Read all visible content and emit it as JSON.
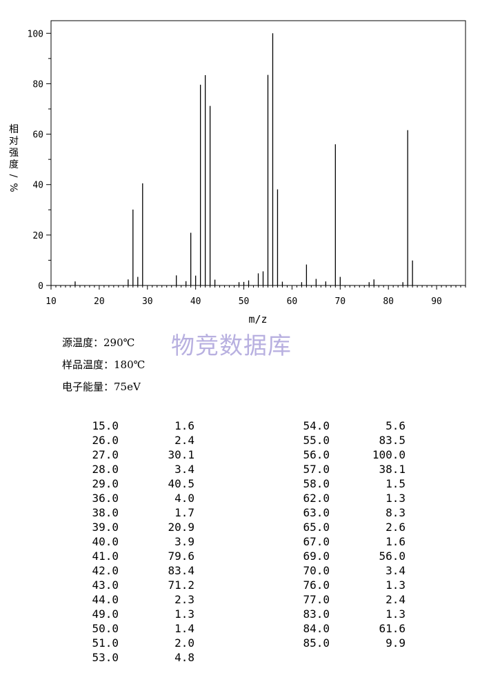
{
  "chart_data": {
    "type": "bar",
    "xlabel": "m/z",
    "ylabel": "相对强度/%",
    "xlim": [
      10,
      96
    ],
    "ylim": [
      0,
      105
    ],
    "xticks": [
      10,
      20,
      30,
      40,
      50,
      60,
      70,
      80,
      90
    ],
    "yticks": [
      0,
      20,
      40,
      60,
      80,
      100
    ],
    "peaks": [
      {
        "mz": 15,
        "ab": 1.6
      },
      {
        "mz": 26,
        "ab": 2.4
      },
      {
        "mz": 27,
        "ab": 30.1
      },
      {
        "mz": 28,
        "ab": 3.4
      },
      {
        "mz": 29,
        "ab": 40.5
      },
      {
        "mz": 36,
        "ab": 4.0
      },
      {
        "mz": 38,
        "ab": 1.7
      },
      {
        "mz": 39,
        "ab": 20.9
      },
      {
        "mz": 40,
        "ab": 3.9
      },
      {
        "mz": 41,
        "ab": 79.6
      },
      {
        "mz": 42,
        "ab": 83.4
      },
      {
        "mz": 43,
        "ab": 71.2
      },
      {
        "mz": 44,
        "ab": 2.3
      },
      {
        "mz": 49,
        "ab": 1.3
      },
      {
        "mz": 50,
        "ab": 1.4
      },
      {
        "mz": 51,
        "ab": 2.0
      },
      {
        "mz": 53,
        "ab": 4.8
      },
      {
        "mz": 54,
        "ab": 5.6
      },
      {
        "mz": 55,
        "ab": 83.5
      },
      {
        "mz": 56,
        "ab": 100.0
      },
      {
        "mz": 57,
        "ab": 38.1
      },
      {
        "mz": 58,
        "ab": 1.5
      },
      {
        "mz": 62,
        "ab": 1.3
      },
      {
        "mz": 63,
        "ab": 8.3
      },
      {
        "mz": 65,
        "ab": 2.6
      },
      {
        "mz": 67,
        "ab": 1.6
      },
      {
        "mz": 69,
        "ab": 56.0
      },
      {
        "mz": 70,
        "ab": 3.4
      },
      {
        "mz": 76,
        "ab": 1.3
      },
      {
        "mz": 77,
        "ab": 2.4
      },
      {
        "mz": 83,
        "ab": 1.3
      },
      {
        "mz": 84,
        "ab": 61.6
      },
      {
        "mz": 85,
        "ab": 9.9
      }
    ]
  },
  "watermark": "物竞数据库",
  "conditions": [
    {
      "label": "源温度：",
      "value": "290℃"
    },
    {
      "label": "样品温度：",
      "value": "180℃"
    },
    {
      "label": "电子能量：",
      "value": "75eV"
    }
  ],
  "table": {
    "left": [
      [
        "15.0",
        "1.6"
      ],
      [
        "26.0",
        "2.4"
      ],
      [
        "27.0",
        "30.1"
      ],
      [
        "28.0",
        "3.4"
      ],
      [
        "29.0",
        "40.5"
      ],
      [
        "36.0",
        "4.0"
      ],
      [
        "38.0",
        "1.7"
      ],
      [
        "39.0",
        "20.9"
      ],
      [
        "40.0",
        "3.9"
      ],
      [
        "41.0",
        "79.6"
      ],
      [
        "42.0",
        "83.4"
      ],
      [
        "43.0",
        "71.2"
      ],
      [
        "44.0",
        "2.3"
      ],
      [
        "49.0",
        "1.3"
      ],
      [
        "50.0",
        "1.4"
      ],
      [
        "51.0",
        "2.0"
      ],
      [
        "53.0",
        "4.8"
      ]
    ],
    "right": [
      [
        "54.0",
        "5.6"
      ],
      [
        "55.0",
        "83.5"
      ],
      [
        "56.0",
        "100.0"
      ],
      [
        "57.0",
        "38.1"
      ],
      [
        "58.0",
        "1.5"
      ],
      [
        "62.0",
        "1.3"
      ],
      [
        "63.0",
        "8.3"
      ],
      [
        "65.0",
        "2.6"
      ],
      [
        "67.0",
        "1.6"
      ],
      [
        "69.0",
        "56.0"
      ],
      [
        "70.0",
        "3.4"
      ],
      [
        "76.0",
        "1.3"
      ],
      [
        "77.0",
        "2.4"
      ],
      [
        "83.0",
        "1.3"
      ],
      [
        "84.0",
        "61.6"
      ],
      [
        "85.0",
        "9.9"
      ]
    ]
  }
}
